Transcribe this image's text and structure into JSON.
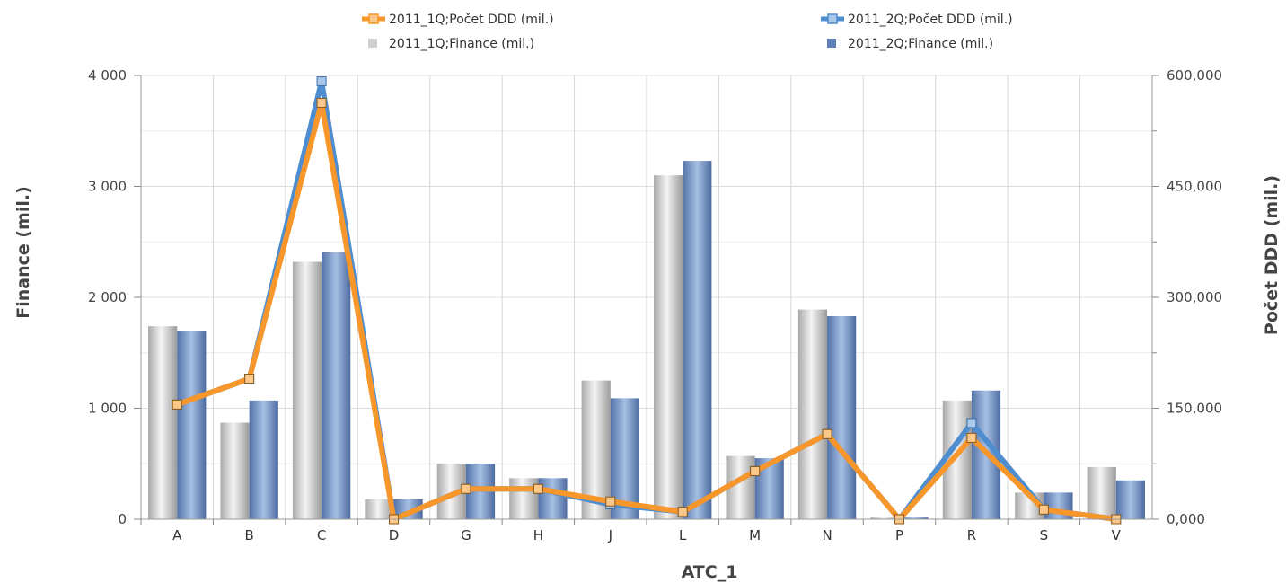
{
  "chart_data": {
    "type": "bar",
    "categories": [
      "A",
      "B",
      "C",
      "D",
      "G",
      "H",
      "J",
      "L",
      "M",
      "N",
      "P",
      "R",
      "S",
      "V"
    ],
    "xlabel": "ATC_1",
    "ylabel_left": "Finance (mil.)",
    "ylabel_right": "Počet DDD (mil.)",
    "ylim_left": [
      0,
      4000
    ],
    "ylim_right": [
      0,
      600000
    ],
    "yticks_left": [
      "0",
      "1 000",
      "2 000",
      "3 000",
      "4 000"
    ],
    "yticks_right": [
      "0,000",
      "150,000",
      "300,000",
      "450,000",
      "600,000"
    ],
    "grid": true,
    "legend_position": "top",
    "bar_series": [
      {
        "name": "2011_1Q;Finance (mil.)",
        "color": "#c8c8c8",
        "values": [
          1740,
          870,
          2320,
          180,
          500,
          370,
          1250,
          3100,
          570,
          1890,
          15,
          1070,
          240,
          470
        ]
      },
      {
        "name": "2011_2Q;Finance (mil.)",
        "color": "#6f8fc4",
        "values": [
          1700,
          1070,
          2410,
          180,
          500,
          370,
          1090,
          3230,
          550,
          1830,
          15,
          1160,
          240,
          350
        ]
      }
    ],
    "line_series": [
      {
        "name": "2011_1Q;Počet DDD (mil.)",
        "color": "#f7962a",
        "values": [
          155000,
          190000,
          563000,
          0,
          41000,
          41000,
          24000,
          10000,
          65000,
          115000,
          0,
          110000,
          13000,
          0
        ]
      },
      {
        "name": "2011_2Q;Počet DDD (mil.)",
        "color": "#4e8ed0",
        "values": [
          155000,
          190000,
          592000,
          0,
          41000,
          41000,
          20000,
          10000,
          65000,
          115000,
          0,
          130000,
          13000,
          0
        ]
      }
    ]
  }
}
